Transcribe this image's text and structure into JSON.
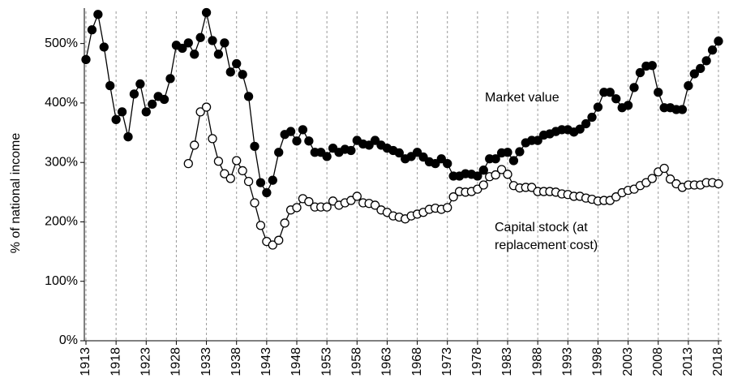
{
  "chart_data": {
    "type": "line",
    "y_label": "% of national income",
    "x": [
      1913,
      1914,
      1915,
      1916,
      1917,
      1918,
      1919,
      1920,
      1921,
      1922,
      1923,
      1924,
      1925,
      1926,
      1927,
      1928,
      1929,
      1930,
      1931,
      1932,
      1933,
      1934,
      1935,
      1936,
      1937,
      1938,
      1939,
      1940,
      1941,
      1942,
      1943,
      1944,
      1945,
      1946,
      1947,
      1948,
      1949,
      1950,
      1951,
      1952,
      1953,
      1954,
      1955,
      1956,
      1957,
      1958,
      1959,
      1960,
      1961,
      1962,
      1963,
      1964,
      1965,
      1966,
      1967,
      1968,
      1969,
      1970,
      1971,
      1972,
      1973,
      1974,
      1975,
      1976,
      1977,
      1978,
      1979,
      1980,
      1981,
      1982,
      1983,
      1984,
      1985,
      1986,
      1987,
      1988,
      1989,
      1990,
      1991,
      1992,
      1993,
      1994,
      1995,
      1996,
      1997,
      1998,
      1999,
      2000,
      2001,
      2002,
      2003,
      2004,
      2005,
      2006,
      2007,
      2008,
      2009,
      2010,
      2011,
      2012,
      2013,
      2014,
      2015,
      2016,
      2017,
      2018
    ],
    "xlim": [
      1913,
      2018
    ],
    "xticks": [
      1913,
      1918,
      1923,
      1928,
      1933,
      1938,
      1943,
      1948,
      1953,
      1958,
      1963,
      1968,
      1973,
      1978,
      1983,
      1988,
      1993,
      1998,
      2003,
      2008,
      2013,
      2018
    ],
    "ylim": [
      0,
      550
    ],
    "yticks": [
      {
        "value": 0,
        "label": "0%"
      },
      {
        "value": 100,
        "label": "100%"
      },
      {
        "value": 200,
        "label": "200%"
      },
      {
        "value": 300,
        "label": "300%"
      },
      {
        "value": 400,
        "label": "400%"
      },
      {
        "value": 500,
        "label": "500%"
      }
    ],
    "grid": "x",
    "series": [
      {
        "name": "Market value",
        "color": "#000000",
        "marker_fill": "#000000",
        "values": [
          473,
          523,
          549,
          494,
          429,
          372,
          385,
          343,
          415,
          432,
          385,
          398,
          411,
          406,
          441,
          497,
          492,
          501,
          482,
          510,
          552,
          505,
          482,
          501,
          452,
          466,
          448,
          411,
          327,
          266,
          249,
          270,
          317,
          347,
          352,
          336,
          355,
          336,
          317,
          317,
          310,
          324,
          317,
          322,
          320,
          337,
          331,
          329,
          337,
          329,
          324,
          320,
          316,
          306,
          310,
          317,
          309,
          301,
          298,
          306,
          298,
          277,
          277,
          281,
          280,
          277,
          287,
          306,
          306,
          316,
          317,
          303,
          318,
          333,
          337,
          337,
          346,
          348,
          352,
          355,
          355,
          351,
          356,
          365,
          376,
          393,
          418,
          418,
          407,
          392,
          396,
          426,
          451,
          462,
          463,
          418,
          392,
          392,
          389,
          389,
          429,
          449,
          458,
          471,
          489,
          504
        ]
      },
      {
        "name": "Capital stock (at replacement cost)",
        "color": "#000000",
        "marker_fill": "#ffffff",
        "values": [
          null,
          null,
          null,
          null,
          null,
          null,
          null,
          null,
          null,
          null,
          null,
          null,
          null,
          null,
          null,
          null,
          null,
          298,
          329,
          385,
          393,
          340,
          302,
          281,
          273,
          303,
          286,
          268,
          232,
          194,
          167,
          161,
          169,
          198,
          220,
          224,
          239,
          234,
          225,
          225,
          225,
          235,
          228,
          232,
          236,
          243,
          232,
          231,
          228,
          220,
          216,
          210,
          208,
          205,
          210,
          213,
          216,
          221,
          223,
          221,
          224,
          242,
          251,
          250,
          251,
          255,
          262,
          276,
          279,
          288,
          280,
          261,
          257,
          258,
          258,
          251,
          251,
          251,
          250,
          247,
          246,
          243,
          243,
          240,
          238,
          235,
          236,
          236,
          242,
          249,
          253,
          255,
          261,
          266,
          273,
          284,
          290,
          272,
          264,
          258,
          262,
          262,
          262,
          266,
          266,
          264
        ]
      }
    ]
  }
}
